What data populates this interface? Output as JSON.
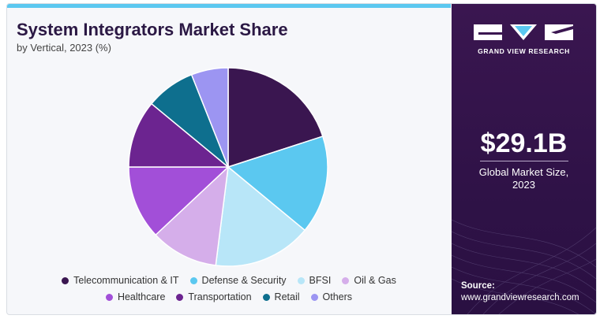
{
  "colors": {
    "accent": "#5bc8f0",
    "panel": "#2f1247",
    "title": "#2b1844"
  },
  "header": {
    "title": "System Integrators Market Share",
    "subtitle": "by Vertical, 2023 (%)"
  },
  "chart_data": {
    "type": "pie",
    "categories": [
      "Telecommunication & IT",
      "Defense & Security",
      "BFSI",
      "Oil & Gas",
      "Healthcare",
      "Transportation",
      "Retail",
      "Others"
    ],
    "values": [
      20,
      16,
      16,
      11,
      12,
      11,
      8,
      6
    ],
    "colors": [
      "#3a1650",
      "#5bc8f0",
      "#b8e6f8",
      "#d5aeea",
      "#a24fd8",
      "#6c2490",
      "#0e6f8e",
      "#9c95f2"
    ],
    "start_angle_deg": 0,
    "direction": "clockwise",
    "legend_position": "bottom",
    "title": "System Integrators Market Share",
    "subtitle": "by Vertical, 2023 (%)"
  },
  "sidebar": {
    "brand": "GRAND VIEW RESEARCH",
    "market_value": "$29.1B",
    "market_label_line1": "Global Market Size,",
    "market_label_line2": "2023",
    "source_label": "Source:",
    "source_url": "www.grandviewresearch.com"
  }
}
